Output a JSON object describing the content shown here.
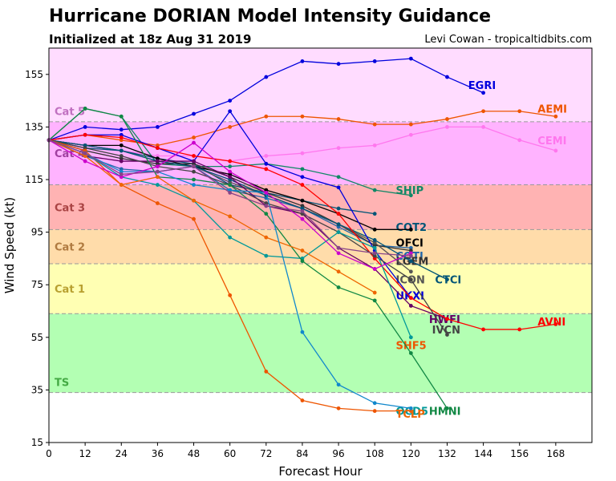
{
  "chart_data": {
    "type": "line",
    "title": "Hurricane DORIAN Model Intensity Guidance",
    "subtitle": "Initialized at 18z Aug 31 2019",
    "credit": "Levi Cowan - tropicaltidbits.com",
    "xlabel": "Forecast Hour",
    "ylabel": "Wind Speed (kt)",
    "xlim": [
      0,
      180
    ],
    "ylim": [
      15,
      165
    ],
    "xticks": [
      0,
      12,
      24,
      36,
      48,
      60,
      72,
      84,
      96,
      108,
      120,
      132,
      144,
      156,
      168
    ],
    "yticks": [
      15,
      35,
      55,
      75,
      95,
      115,
      135,
      155
    ],
    "grid": false,
    "legend": "none",
    "categories_bands": [
      {
        "name": "TS",
        "from": 34,
        "to": 64,
        "color": "#b3ffb3",
        "label_color": "#44aa44"
      },
      {
        "name": "Cat 1",
        "from": 64,
        "to": 83,
        "color": "#ffffb3",
        "label_color": "#b8a030"
      },
      {
        "name": "Cat 2",
        "from": 83,
        "to": 96,
        "color": "#ffdcaa",
        "label_color": "#b07a40"
      },
      {
        "name": "Cat 3",
        "from": 96,
        "to": 113,
        "color": "#ffb3b3",
        "label_color": "#aa4444"
      },
      {
        "name": "Cat 4",
        "from": 113,
        "to": 137,
        "color": "#ffb3ff",
        "label_color": "#a040a0"
      },
      {
        "name": "Cat 5",
        "from": 137,
        "to": 165,
        "color": "#ffdcff",
        "label_color": "#c070c0"
      }
    ],
    "series": [
      {
        "name": "EGRI",
        "color": "#0000dd",
        "x": [
          0,
          12,
          24,
          36,
          48,
          60,
          72,
          84,
          96,
          108,
          120,
          132,
          144
        ],
        "y": [
          130,
          135,
          134,
          135,
          140,
          145,
          154,
          160,
          159,
          160,
          161,
          154,
          148
        ],
        "label_at": [
          139,
          151
        ]
      },
      {
        "name": "AEMI",
        "color": "#ee5500",
        "x": [
          0,
          12,
          24,
          36,
          48,
          60,
          72,
          84,
          96,
          108,
          120,
          132,
          144,
          156,
          168
        ],
        "y": [
          130,
          132,
          130,
          128,
          131,
          135,
          139,
          139,
          138,
          136,
          136,
          138,
          141,
          141,
          139
        ],
        "label_at": [
          162,
          142
        ]
      },
      {
        "name": "CEMI",
        "color": "#ff77ee",
        "x": [
          0,
          12,
          24,
          36,
          48,
          60,
          72,
          84,
          96,
          108,
          120,
          132,
          144,
          156,
          168
        ],
        "y": [
          130,
          127,
          126,
          124,
          124,
          122,
          124,
          125,
          127,
          128,
          132,
          135,
          135,
          130,
          126
        ],
        "label_at": [
          162,
          130
        ]
      },
      {
        "name": "SHIP",
        "color": "#118866",
        "x": [
          0,
          12,
          24,
          36,
          48,
          60,
          72,
          84,
          96,
          108,
          120
        ],
        "y": [
          130,
          142,
          139,
          121,
          120,
          120,
          121,
          119,
          116,
          111,
          109
        ],
        "label_at": [
          115,
          111
        ]
      },
      {
        "name": "COT2",
        "color": "#005577",
        "x": [
          0,
          12,
          24,
          36,
          48,
          60,
          72,
          84,
          96,
          108
        ],
        "y": [
          130,
          127,
          126,
          123,
          121,
          113,
          110,
          107,
          104,
          102
        ],
        "label_at": [
          115,
          97
        ]
      },
      {
        "name": "OFCI",
        "color": "#000000",
        "x": [
          0,
          12,
          24,
          36,
          48,
          60,
          72,
          84,
          96,
          108,
          120
        ],
        "y": [
          130,
          128,
          128,
          123,
          120,
          117,
          111,
          107,
          102,
          96,
          96
        ],
        "label_at": [
          115,
          91
        ]
      },
      {
        "name": "COTI",
        "color": "#2266aa",
        "x": [
          0,
          12,
          24,
          36,
          48,
          60,
          72,
          84,
          96,
          108,
          120
        ],
        "y": [
          130,
          124,
          119,
          118,
          120,
          111,
          108,
          104,
          97,
          90,
          89
        ],
        "label_at": [
          115,
          86
        ]
      },
      {
        "name": "LGEM",
        "color": "#333333",
        "x": [
          0,
          12,
          24,
          36,
          48,
          60,
          72,
          84,
          96,
          108,
          120
        ],
        "y": [
          130,
          126,
          123,
          121,
          121,
          116,
          110,
          105,
          98,
          90,
          88
        ],
        "label_at": [
          115,
          84
        ]
      },
      {
        "name": "ICON",
        "color": "#555555",
        "x": [
          0,
          12,
          24,
          36,
          48,
          60,
          72,
          84,
          96,
          108,
          120
        ],
        "y": [
          130,
          128,
          126,
          122,
          120,
          114,
          109,
          104,
          98,
          91,
          80
        ],
        "label_at": [
          115,
          77
        ]
      },
      {
        "name": "CTCI",
        "color": "#005577",
        "x": [
          0,
          12,
          24,
          36,
          48,
          60,
          72,
          84,
          96,
          108,
          120,
          132
        ],
        "y": [
          130,
          128,
          126,
          122,
          120,
          115,
          109,
          104,
          98,
          92,
          84,
          77
        ],
        "label_at": [
          128,
          77
        ]
      },
      {
        "name": "UKXI",
        "color": "#0000dd",
        "x": [
          0,
          12,
          24,
          36,
          48,
          60,
          72,
          84,
          96,
          108,
          120
        ],
        "y": [
          130,
          132,
          132,
          127,
          122,
          141,
          121,
          116,
          112,
          88,
          70
        ],
        "label_at": [
          115,
          71
        ]
      },
      {
        "name": "HWFI",
        "color": "#660066",
        "x": [
          0,
          12,
          24,
          36,
          48,
          60,
          72,
          84,
          96,
          108,
          120,
          132
        ],
        "y": [
          130,
          124,
          122,
          122,
          122,
          116,
          105,
          102,
          89,
          81,
          67,
          62
        ],
        "label_at": [
          126,
          62
        ]
      },
      {
        "name": "AVNI",
        "color": "#ff0000",
        "x": [
          0,
          12,
          24,
          36,
          48,
          60,
          72,
          84,
          96,
          108,
          120,
          132,
          144,
          156,
          168
        ],
        "y": [
          130,
          132,
          131,
          127,
          124,
          122,
          119,
          113,
          102,
          85,
          70,
          62,
          58,
          58,
          60
        ],
        "label_at": [
          162,
          61
        ]
      },
      {
        "name": "IVCN",
        "color": "#444444",
        "x": [
          0,
          12,
          24,
          36,
          48,
          60,
          72,
          84,
          96,
          108,
          120,
          132
        ],
        "y": [
          130,
          127,
          124,
          120,
          118,
          113,
          106,
          102,
          95,
          86,
          77,
          56
        ],
        "label_at": [
          127,
          58
        ]
      },
      {
        "name": "SHF5",
        "color": "#ee5500",
        "x": [
          0,
          12,
          24,
          36,
          48,
          60,
          72,
          84,
          96,
          108,
          120
        ],
        "y": [
          130,
          126,
          113,
          106,
          100,
          71,
          42,
          31,
          28,
          27,
          27
        ],
        "label_at": [
          115,
          52
        ]
      },
      {
        "name": "OCD5",
        "color": "#009999",
        "x": [
          0,
          12,
          24,
          36,
          48,
          60,
          72,
          84,
          96,
          108,
          120
        ],
        "y": [
          130,
          125,
          116,
          113,
          107,
          93,
          86,
          85,
          95,
          89,
          55
        ],
        "label_at": [
          115,
          27
        ]
      },
      {
        "name": "HMNI",
        "color": "#118844",
        "x": [
          0,
          12,
          24,
          36,
          48,
          60,
          72,
          84,
          96,
          108,
          120,
          132
        ],
        "y": [
          130,
          142,
          139,
          116,
          115,
          113,
          102,
          84,
          74,
          69,
          49,
          28
        ],
        "label_at": [
          126,
          27
        ]
      },
      {
        "name": "TCLP",
        "color": "#ee6600",
        "x": [
          0,
          12,
          24,
          36,
          48,
          60,
          72,
          84,
          96,
          108
        ],
        "y": [
          130,
          124,
          113,
          116,
          107,
          101,
          93,
          88,
          80,
          72
        ],
        "label_at": [
          115,
          26
        ]
      },
      {
        "name": "",
        "color": "#1188cc",
        "x": [
          0,
          12,
          24,
          36,
          48,
          60,
          72,
          84,
          96,
          108,
          120
        ],
        "y": [
          130,
          125,
          118,
          118,
          113,
          111,
          110,
          57,
          37,
          30,
          28
        ],
        "label_at": null
      },
      {
        "name": "",
        "color": "#cc00cc",
        "x": [
          0,
          12,
          24,
          36,
          48,
          60,
          72,
          84,
          96,
          108,
          120
        ],
        "y": [
          130,
          122,
          116,
          120,
          129,
          118,
          110,
          100,
          87,
          81,
          87
        ],
        "label_at": null
      },
      {
        "name": "",
        "color": "#884488",
        "x": [
          0,
          12,
          24,
          36,
          48,
          60,
          72,
          84,
          96,
          108,
          120
        ],
        "y": [
          130,
          125,
          117,
          118,
          120,
          110,
          105,
          103,
          89,
          87,
          86
        ],
        "label_at": null
      }
    ]
  }
}
